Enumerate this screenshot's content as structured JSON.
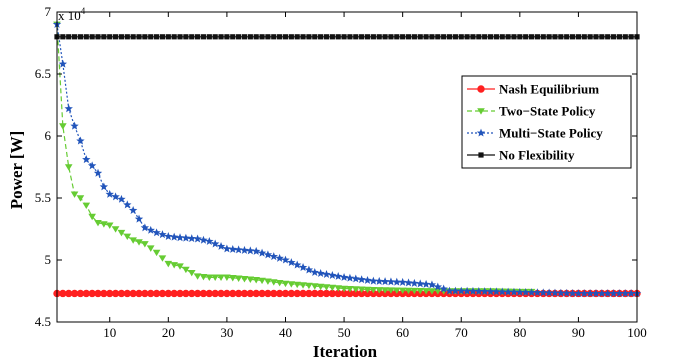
{
  "chart_data": {
    "type": "line",
    "title": "",
    "xlabel": "Iteration",
    "ylabel": "Power [W]",
    "y_multiplier_label": "x 10",
    "y_multiplier_exponent": "4",
    "xlim": [
      1,
      100
    ],
    "ylim": [
      45000,
      70000
    ],
    "x_ticks": [
      10,
      20,
      30,
      40,
      50,
      60,
      70,
      80,
      90,
      100
    ],
    "y_ticks": [
      45000,
      50000,
      55000,
      60000,
      65000,
      70000
    ],
    "y_tick_labels": [
      "4.5",
      "5",
      "5.5",
      "6",
      "6.5",
      "7"
    ],
    "grid": false,
    "legend_position": "top-right",
    "series": [
      {
        "name": "Nash Equilibrium",
        "color": "#ff2020",
        "marker": "circle",
        "line_style": "solid",
        "x": [
          1,
          100
        ],
        "values": [
          47300,
          47300
        ]
      },
      {
        "name": "Two−State Policy",
        "color": "#66cc33",
        "marker": "triangle-down",
        "line_style": "dashed",
        "x": [
          1,
          2,
          3,
          4,
          5,
          6,
          7,
          8,
          9,
          10,
          12,
          14,
          16,
          18,
          20,
          22,
          25,
          27,
          30,
          35,
          40,
          45,
          50,
          55,
          60,
          65,
          70,
          75,
          80,
          82
        ],
        "values": [
          69000,
          60800,
          57500,
          55300,
          55000,
          54400,
          53500,
          53000,
          52900,
          52800,
          52200,
          51600,
          51300,
          50600,
          49700,
          49500,
          48700,
          48600,
          48600,
          48400,
          48100,
          47900,
          47700,
          47600,
          47550,
          47500,
          47500,
          47500,
          47450,
          47450
        ]
      },
      {
        "name": "Multi−State Policy",
        "color": "#2255bb",
        "marker": "star",
        "line_style": "dotted",
        "x": [
          1,
          2,
          3,
          4,
          5,
          6,
          7,
          8,
          9,
          10,
          12,
          14,
          16,
          18,
          20,
          22,
          25,
          27,
          30,
          35,
          40,
          45,
          50,
          55,
          60,
          65,
          68,
          70,
          80,
          90,
          100
        ],
        "values": [
          69000,
          65800,
          62200,
          60800,
          59600,
          58100,
          57600,
          57000,
          55900,
          55300,
          54900,
          54000,
          52600,
          52200,
          51900,
          51800,
          51700,
          51500,
          50900,
          50700,
          50000,
          49000,
          48600,
          48300,
          48200,
          48000,
          47500,
          47500,
          47400,
          47300,
          47300
        ]
      },
      {
        "name": "No Flexibility",
        "color": "#111111",
        "marker": "square",
        "line_style": "solid",
        "x": [
          1,
          100
        ],
        "values": [
          68000,
          68000
        ]
      }
    ]
  }
}
